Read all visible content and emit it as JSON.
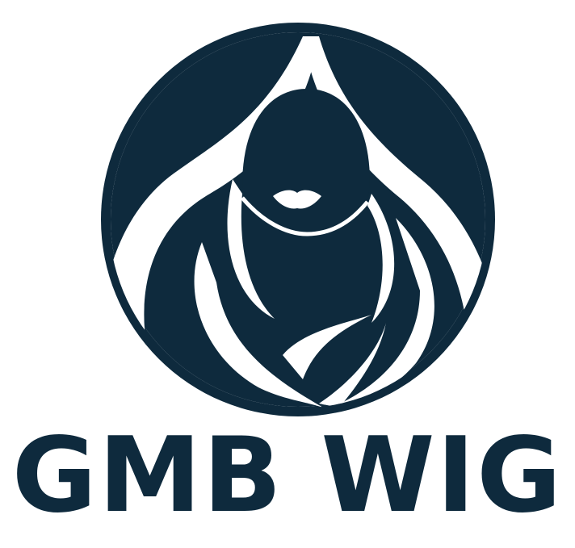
{
  "brand": {
    "name": "GMB WIG",
    "color": "#0e2a3d",
    "background": "#ffffff"
  },
  "emblem": {
    "icon": "woman-silhouette-hair-icon"
  }
}
